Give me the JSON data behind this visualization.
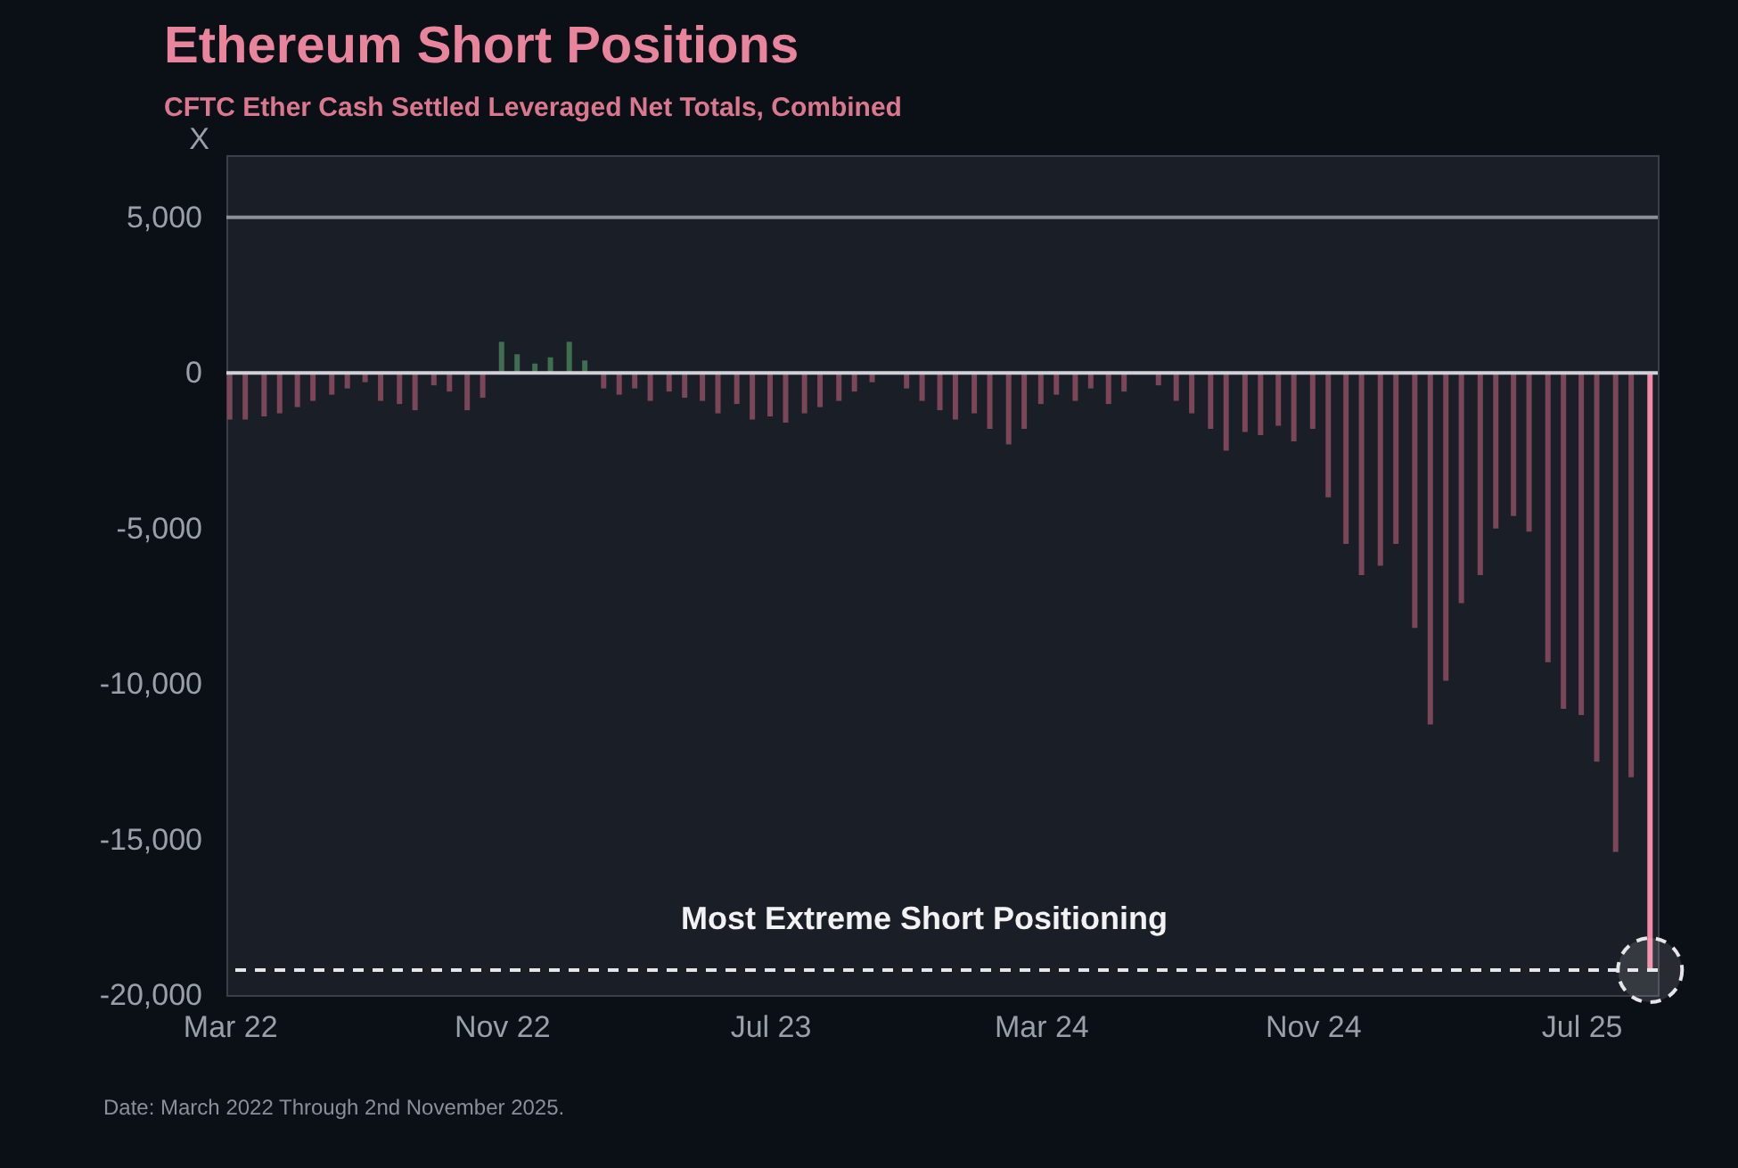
{
  "chart_data": {
    "type": "bar",
    "title": "Ethereum Short Positions",
    "subtitle": "CFTC Ether Cash Settled Leveraged Net Totals, Combined",
    "ylabel": "X",
    "annotations": [
      "Date: March 2022 Through 2nd November 2025."
    ],
    "x": [
      "2022-03-01",
      "2022-03-15",
      "2022-04-01",
      "2022-04-15",
      "2022-05-01",
      "2022-05-15",
      "2022-06-01",
      "2022-06-15",
      "2022-07-01",
      "2022-07-15",
      "2022-08-01",
      "2022-08-15",
      "2022-09-01",
      "2022-09-15",
      "2022-10-01",
      "2022-10-15",
      "2022-11-01",
      "2022-11-15",
      "2022-12-01",
      "2022-12-15",
      "2023-01-01",
      "2023-01-15",
      "2023-02-01",
      "2023-02-15",
      "2023-03-01",
      "2023-03-15",
      "2023-04-01",
      "2023-04-15",
      "2023-05-01",
      "2023-05-15",
      "2023-06-01",
      "2023-06-15",
      "2023-07-01",
      "2023-07-15",
      "2023-08-01",
      "2023-08-15",
      "2023-09-01",
      "2023-09-15",
      "2023-10-01",
      "2023-10-15",
      "2023-11-01",
      "2023-11-15",
      "2023-12-01",
      "2023-12-15",
      "2024-01-01",
      "2024-01-15",
      "2024-02-01",
      "2024-02-15",
      "2024-03-01",
      "2024-03-15",
      "2024-04-01",
      "2024-04-15",
      "2024-05-01",
      "2024-05-15",
      "2024-06-01",
      "2024-06-15",
      "2024-07-01",
      "2024-07-15",
      "2024-08-01",
      "2024-08-15",
      "2024-09-01",
      "2024-09-15",
      "2024-10-01",
      "2024-10-15",
      "2024-11-01",
      "2024-11-15",
      "2024-12-01",
      "2024-12-15",
      "2025-01-01",
      "2025-01-15",
      "2025-02-01",
      "2025-02-15",
      "2025-03-01",
      "2025-03-15",
      "2025-04-01",
      "2025-04-15",
      "2025-05-01",
      "2025-05-15",
      "2025-06-01",
      "2025-06-15",
      "2025-07-01",
      "2025-07-15",
      "2025-08-01",
      "2025-08-15",
      "2025-09-01"
    ],
    "values": [
      -1500,
      -1500,
      -1400,
      -1300,
      -1100,
      -900,
      -700,
      -500,
      -300,
      -900,
      -1000,
      -1200,
      -400,
      -600,
      -1200,
      -800,
      1000,
      600,
      300,
      500,
      1000,
      400,
      -500,
      -700,
      -500,
      -900,
      -600,
      -800,
      -900,
      -1300,
      -1000,
      -1500,
      -1400,
      -1600,
      -1300,
      -1100,
      -900,
      -600,
      -300,
      null,
      -500,
      -900,
      -1200,
      -1500,
      -1300,
      -1800,
      -2300,
      -1800,
      -1000,
      -700,
      -900,
      -500,
      -1000,
      -600,
      null,
      -400,
      -900,
      -1300,
      -1800,
      -2500,
      -1900,
      -2000,
      -1700,
      -2200,
      -1800,
      -4000,
      -5500,
      -6500,
      -6200,
      -5500,
      -8200,
      -11300,
      -9900,
      -7400,
      -6500,
      -5000,
      -4600,
      -5100,
      -9300,
      -10800,
      -11000,
      -12500,
      -15400,
      -13000,
      -19200
    ],
    "colors": [
      "#7a4658",
      "#7a4658",
      "#7a4658",
      "#7a4658",
      "#7a4658",
      "#7a4658",
      "#7a4658",
      "#7a4658",
      "#7a4658",
      "#7a4658",
      "#7a4658",
      "#7a4658",
      "#7a4658",
      "#7a4658",
      "#7a4658",
      "#7a4658",
      "#3f6e50",
      "#3f6e50",
      "#3f6e50",
      "#3f6e50",
      "#3f6e50",
      "#3f6e50",
      "#7a4658",
      "#7a4658",
      "#7a4658",
      "#7a4658",
      "#7a4658",
      "#7a4658",
      "#7a4658",
      "#7a4658",
      "#7a4658",
      "#7a4658",
      "#7a4658",
      "#7a4658",
      "#7a4658",
      "#7a4658",
      "#7a4658",
      "#7a4658",
      "#7a4658",
      "#7a4658",
      "#7a4658",
      "#7a4658",
      "#7a4658",
      "#7a4658",
      "#7a4658",
      "#7a4658",
      "#7a4658",
      "#7a4658",
      "#7a4658",
      "#7a4658",
      "#7a4658",
      "#7a4658",
      "#7a4658",
      "#7a4658",
      "#7a4658",
      "#7a4658",
      "#7a4658",
      "#7a4658",
      "#7a4658",
      "#7a4658",
      "#7a4658",
      "#7a4658",
      "#7a4658",
      "#7a4658",
      "#7a4658",
      "#7a4658",
      "#7a4658",
      "#7a4658",
      "#7a4658",
      "#7a4658",
      "#7a4658",
      "#7a4658",
      "#7a4658",
      "#7a4658",
      "#7a4658",
      "#7a4658",
      "#7a4658",
      "#7a4658",
      "#7a4658",
      "#7a4658",
      "#7a4658",
      "#7a4658",
      "#7a4658",
      "#7a4658",
      "#f08aa6"
    ],
    "xlim": [
      "2022-02-26",
      "2025-09-08"
    ],
    "ylim": [
      -20000,
      7000
    ],
    "xticks": [
      {
        "value": "2022-03-01",
        "label": "Mar 22"
      },
      {
        "value": "2022-11-01",
        "label": "Nov 22"
      },
      {
        "value": "2023-07-01",
        "label": "Jul 23"
      },
      {
        "value": "2024-03-01",
        "label": "Mar 24"
      },
      {
        "value": "2024-11-01",
        "label": "Nov 24"
      },
      {
        "value": "2025-07-01",
        "label": "Jul 25"
      }
    ],
    "yticks": [
      {
        "value": 5000,
        "label": "5,000"
      },
      0,
      {
        "value": -5000,
        "label": "-5,000"
      },
      {
        "value": -10000,
        "label": "-10,000"
      },
      {
        "value": -15000,
        "label": "-15,000"
      },
      {
        "value": -20000,
        "label": "-20,000"
      }
    ],
    "ref_lines": [
      {
        "axis": "y",
        "value": 5000,
        "color": "#8c9099",
        "line_style": "solid"
      },
      {
        "axis": "y",
        "value": 0,
        "color": "#d0d0d8",
        "line_style": "solid"
      },
      {
        "axis": "y",
        "value": -19200,
        "label": "Most Extreme Short Positioning",
        "color": "#e6e6ea",
        "line_style": "dashed"
      }
    ]
  }
}
